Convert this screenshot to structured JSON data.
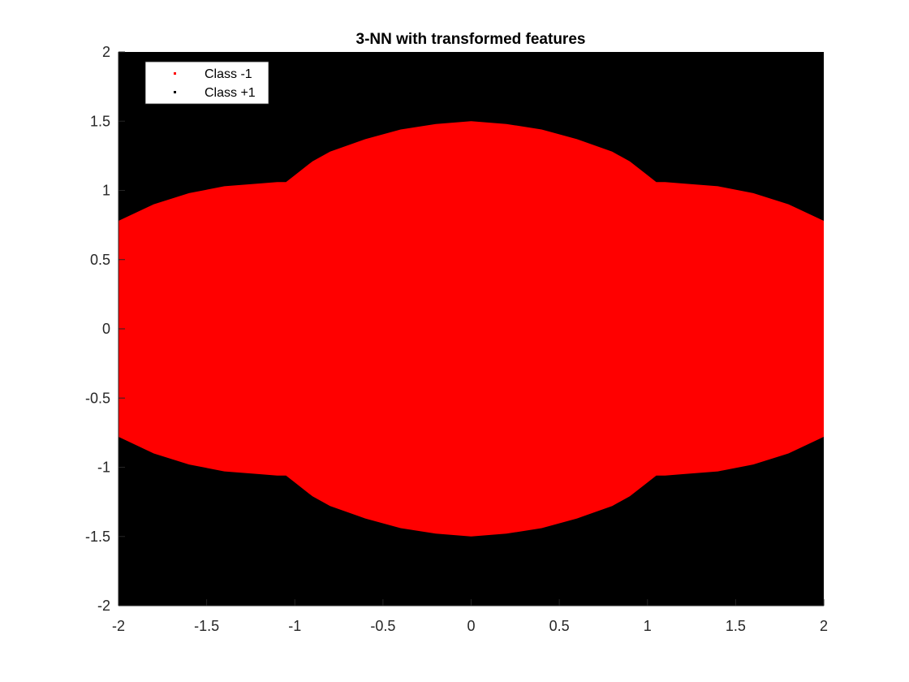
{
  "chart_data": {
    "type": "area",
    "title": "3-NN with transformed features",
    "xlabel": "",
    "ylabel": "",
    "xlim": [
      -2,
      2
    ],
    "ylim": [
      -2,
      2
    ],
    "xticks": [
      "-2",
      "-1.5",
      "-1",
      "-0.5",
      "0",
      "0.5",
      "1",
      "1.5",
      "2"
    ],
    "yticks": [
      "2",
      "1.5",
      "1",
      "0.5",
      "0",
      "-0.5",
      "-1",
      "-1.5",
      "-2"
    ],
    "xtick_values": [
      -2,
      -1.5,
      -1,
      -0.5,
      0,
      0.5,
      1,
      1.5,
      2
    ],
    "ytick_values": [
      2,
      1.5,
      1,
      0.5,
      0,
      -0.5,
      -1,
      -1.5,
      -2
    ],
    "grid": false,
    "legend_position": "top-left",
    "series": [
      {
        "name": "Class -1",
        "color": "#ff0000",
        "region": "inside boundary",
        "boundary_upper": {
          "x": [
            -2.0,
            -1.8,
            -1.6,
            -1.4,
            -1.2,
            -1.1,
            -1.05,
            -1.0,
            -0.9,
            -0.8,
            -0.6,
            -0.4,
            -0.2,
            0.0,
            0.2,
            0.4,
            0.6,
            0.8,
            0.9,
            1.0,
            1.05,
            1.1,
            1.2,
            1.4,
            1.6,
            1.8,
            2.0
          ],
          "y": [
            0.78,
            0.9,
            0.98,
            1.03,
            1.05,
            1.06,
            1.06,
            1.11,
            1.21,
            1.28,
            1.37,
            1.44,
            1.48,
            1.5,
            1.48,
            1.44,
            1.37,
            1.28,
            1.21,
            1.11,
            1.06,
            1.06,
            1.05,
            1.03,
            0.98,
            0.9,
            0.78
          ]
        }
      },
      {
        "name": "Class +1",
        "color": "#000000",
        "region": "outside boundary"
      }
    ]
  }
}
